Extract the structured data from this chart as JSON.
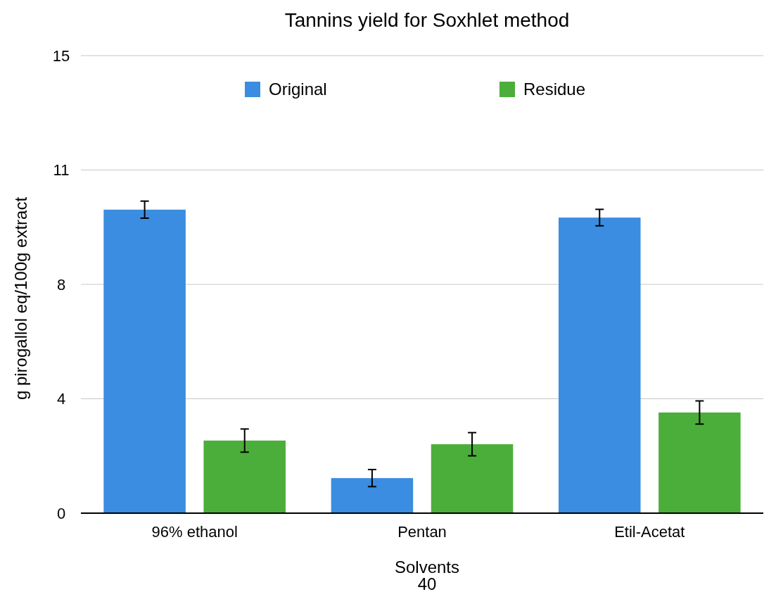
{
  "chart_data": {
    "type": "bar",
    "title": "Tannins yield for Soxhlet method",
    "xlabel": "Solvents",
    "ylabel": "g pirogallol eq/100g extract",
    "annotations": [
      "40"
    ],
    "categories": [
      "96% ethanol",
      "Pentan",
      "Etil-Acetat"
    ],
    "series": [
      {
        "name": "Original",
        "color": "#3a8de0",
        "values": [
          9.95,
          1.15,
          9.69
        ],
        "errors": [
          0.28,
          0.28,
          0.27
        ]
      },
      {
        "name": "Residue",
        "color": "#4cae3a",
        "values": [
          2.38,
          2.26,
          3.3
        ],
        "errors": [
          0.38,
          0.38,
          0.38
        ]
      }
    ],
    "ylim": [
      0,
      15
    ],
    "yticks": [
      0,
      {
        "value": 3.75,
        "label": "4"
      },
      {
        "value": 7.5,
        "label": "8"
      },
      {
        "value": 11.25,
        "label": "11"
      },
      15
    ],
    "grid": "y",
    "legend": "top"
  }
}
